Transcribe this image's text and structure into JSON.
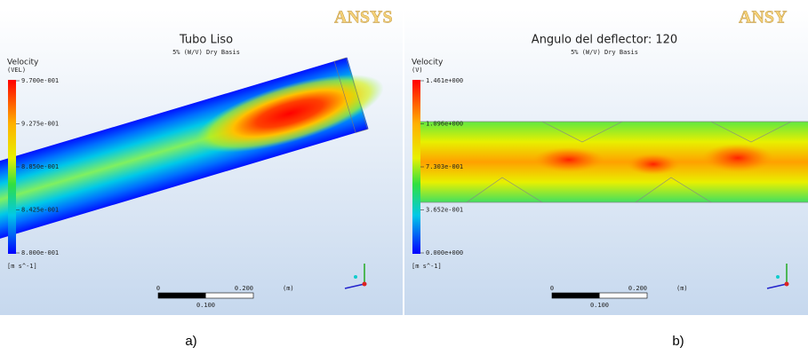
{
  "panels": [
    {
      "logo": "ANSYS",
      "title": "Tubo Liso",
      "subtitle": "5% (W/V) Dry Basis",
      "legend_title": "Velocity",
      "legend_variable": "(VEL)",
      "legend_labels": [
        "9.700e-001",
        "9.275e-001",
        "8.850e-001",
        "8.425e-001",
        "8.000e-001"
      ],
      "legend_unit": "[m s^-1]",
      "scale_labels": [
        "0",
        "0.200",
        "(m)",
        "0.100"
      ],
      "caption": "a)"
    },
    {
      "logo": "ANSY",
      "title": "Angulo del deflector: 120",
      "subtitle": "5% (W/V) Dry Basis",
      "legend_title": "Velocity",
      "legend_variable": "(V)",
      "legend_labels": [
        "1.461e+000",
        "1.096e+000",
        "7.303e-001",
        "3.652e-001",
        "0.000e+000"
      ],
      "legend_unit": "[m s^-1]",
      "scale_labels": [
        "0",
        "0.200",
        "(m)",
        "0.100"
      ],
      "caption": "b)"
    }
  ]
}
